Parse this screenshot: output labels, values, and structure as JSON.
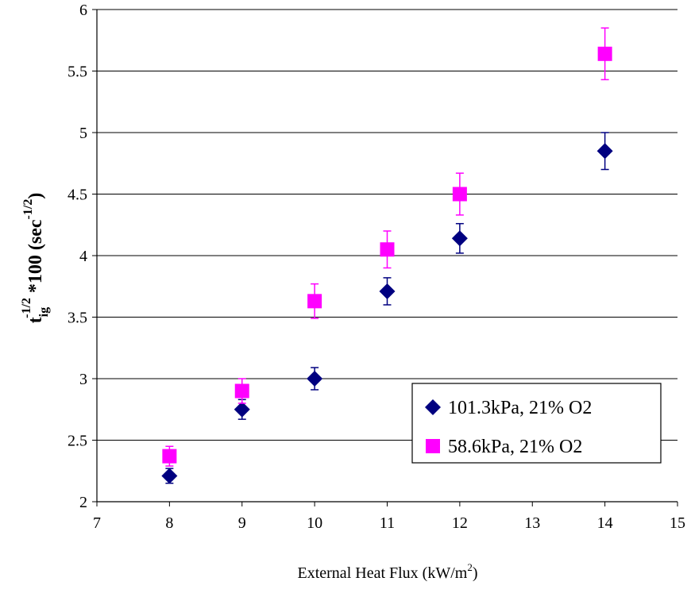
{
  "chart_data": {
    "type": "scatter",
    "xlabel": "External Heat Flux (kW/m²)",
    "ylabel": "t_ig^(-1/2) *100 (sec^(-1/2))",
    "xlim": [
      7,
      15
    ],
    "ylim": [
      2,
      6
    ],
    "xticks": [
      7,
      8,
      9,
      10,
      11,
      12,
      13,
      14,
      15
    ],
    "yticks": [
      2,
      2.5,
      3,
      3.5,
      4,
      4.5,
      5,
      5.5,
      6
    ],
    "grid": "horizontal",
    "legend_position": "bottom-right",
    "series": [
      {
        "name": "101.3kPa, 21% O2",
        "marker": "diamond",
        "color": "#000080",
        "x": [
          8,
          9,
          10,
          11,
          12,
          14
        ],
        "y": [
          2.21,
          2.75,
          3.0,
          3.71,
          4.14,
          4.85
        ],
        "err": [
          0.06,
          0.08,
          0.09,
          0.11,
          0.12,
          0.15
        ]
      },
      {
        "name": "58.6kPa, 21% O2",
        "marker": "square",
        "color": "#FF00FF",
        "x": [
          8,
          9,
          10,
          11,
          12,
          14
        ],
        "y": [
          2.37,
          2.9,
          3.63,
          4.05,
          4.5,
          5.64
        ],
        "err": [
          0.08,
          0.1,
          0.14,
          0.15,
          0.17,
          0.21
        ]
      }
    ]
  },
  "labels": {
    "xlabel_main": "External Heat Flux (kW/m",
    "xlabel_sup": "2",
    "xlabel_end": ")",
    "ylabel_t": "t",
    "ylabel_sub": "ig",
    "ylabel_sup": "-1/2",
    "ylabel_mid": " *100 (sec",
    "ylabel_sup2": "-1/2",
    "ylabel_end": ")"
  }
}
